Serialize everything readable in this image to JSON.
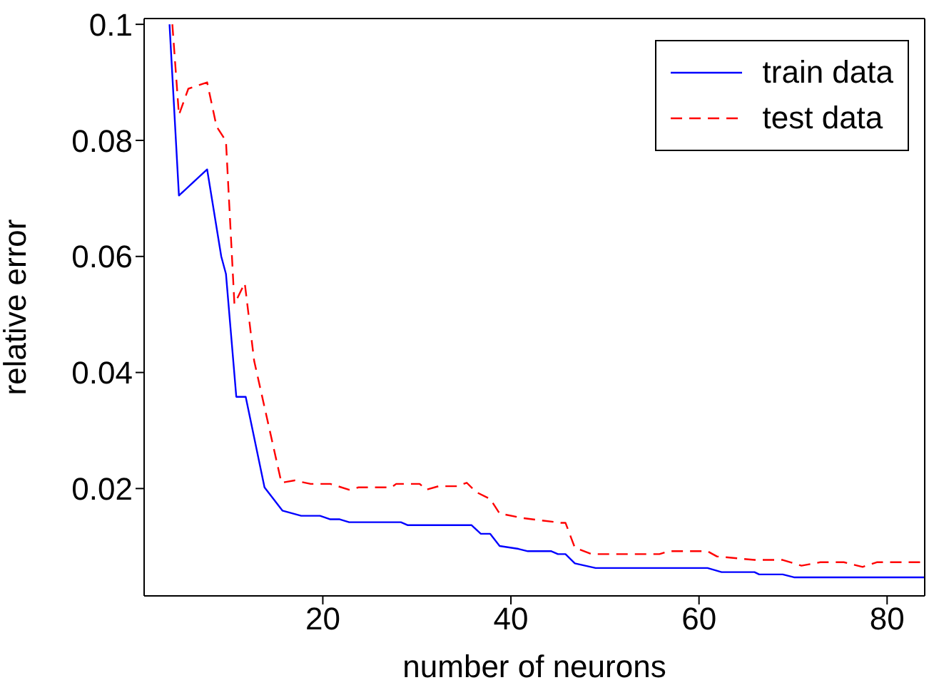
{
  "chart_data": {
    "type": "line",
    "xlabel": "number of neurons",
    "ylabel": "relative error",
    "xlim": [
      1,
      84
    ],
    "ylim": [
      0.0015,
      0.101
    ],
    "xticks": [
      20,
      40,
      60,
      80
    ],
    "yticks": [
      0.02,
      0.04,
      0.06,
      0.08,
      0.1
    ],
    "legend": "top right",
    "marker": "none",
    "series": [
      {
        "name": "train data",
        "color": "#0000ff",
        "line_style": "solid",
        "x": [
          3.7,
          4.7,
          7.7,
          9.2,
          9.7,
          10.8,
          11.8,
          13.8,
          15.7,
          17.7,
          19.7,
          20.8,
          21.8,
          22.8,
          28.3,
          29,
          35.8,
          36.8,
          37.8,
          38.8,
          40.8,
          41.8,
          44.3,
          45,
          45.8,
          46.8,
          49,
          60.9,
          62.4,
          65.9,
          66.4,
          68.9,
          70.1,
          84
        ],
        "values": [
          0.1,
          0.0705,
          0.075,
          0.06,
          0.057,
          0.0358,
          0.0358,
          0.0202,
          0.0162,
          0.0153,
          0.0153,
          0.0147,
          0.0147,
          0.0142,
          0.0142,
          0.0137,
          0.0137,
          0.0122,
          0.0122,
          0.0101,
          0.0096,
          0.0092,
          0.0092,
          0.0087,
          0.0087,
          0.0071,
          0.0063,
          0.0063,
          0.0056,
          0.0056,
          0.0052,
          0.0052,
          0.0047,
          0.0047
        ]
      },
      {
        "name": "test data",
        "color": "#ff0000",
        "line_style": "dashed",
        "x": [
          4,
          4.7,
          5.7,
          7.7,
          8.7,
          9.7,
          10.6,
          11.7,
          12.7,
          15.6,
          17,
          18.7,
          20.8,
          22.8,
          23.8,
          27.3,
          27.8,
          30.3,
          31,
          32.3,
          34.3,
          35.3,
          36.3,
          37.8,
          38.8,
          41.3,
          45.3,
          45.8,
          46.8,
          48.6,
          55.8,
          56.8,
          60.9,
          61.9,
          65.9,
          68.9,
          70.9,
          72.9,
          75.4,
          77.4,
          78.9,
          84
        ],
        "values": [
          0.1,
          0.0844,
          0.0889,
          0.09,
          0.0824,
          0.0799,
          0.0518,
          0.0554,
          0.042,
          0.021,
          0.0214,
          0.0208,
          0.0208,
          0.0198,
          0.0202,
          0.0202,
          0.0208,
          0.0208,
          0.0198,
          0.0204,
          0.0204,
          0.021,
          0.0194,
          0.0182,
          0.0157,
          0.0149,
          0.0141,
          0.0141,
          0.0098,
          0.0087,
          0.0087,
          0.0092,
          0.0092,
          0.0083,
          0.0077,
          0.0077,
          0.0067,
          0.0073,
          0.0073,
          0.0065,
          0.0073,
          0.0073
        ]
      }
    ]
  }
}
